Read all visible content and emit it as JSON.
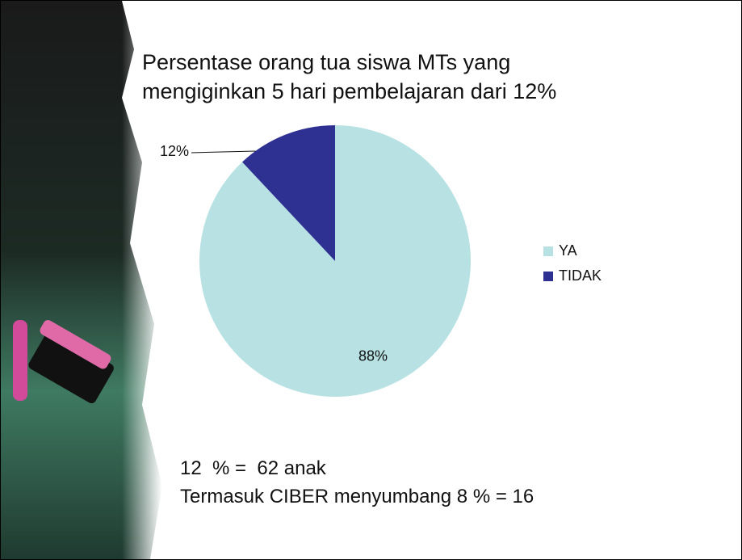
{
  "chart_data": {
    "type": "pie",
    "title": "Persentase orang tua siswa MTs yang mengiginkan 5 hari pembelajaran dari 12%",
    "categories": [
      "YA",
      "TIDAK"
    ],
    "values": [
      88,
      12
    ],
    "value_labels": [
      "88%",
      "12%"
    ],
    "colors": [
      "#b7e1e3",
      "#2e3192"
    ],
    "legend": "right",
    "annotations": [
      "12  % =  62 anak",
      "Termasuk CIBER menyumbang 8 % = 16"
    ]
  }
}
